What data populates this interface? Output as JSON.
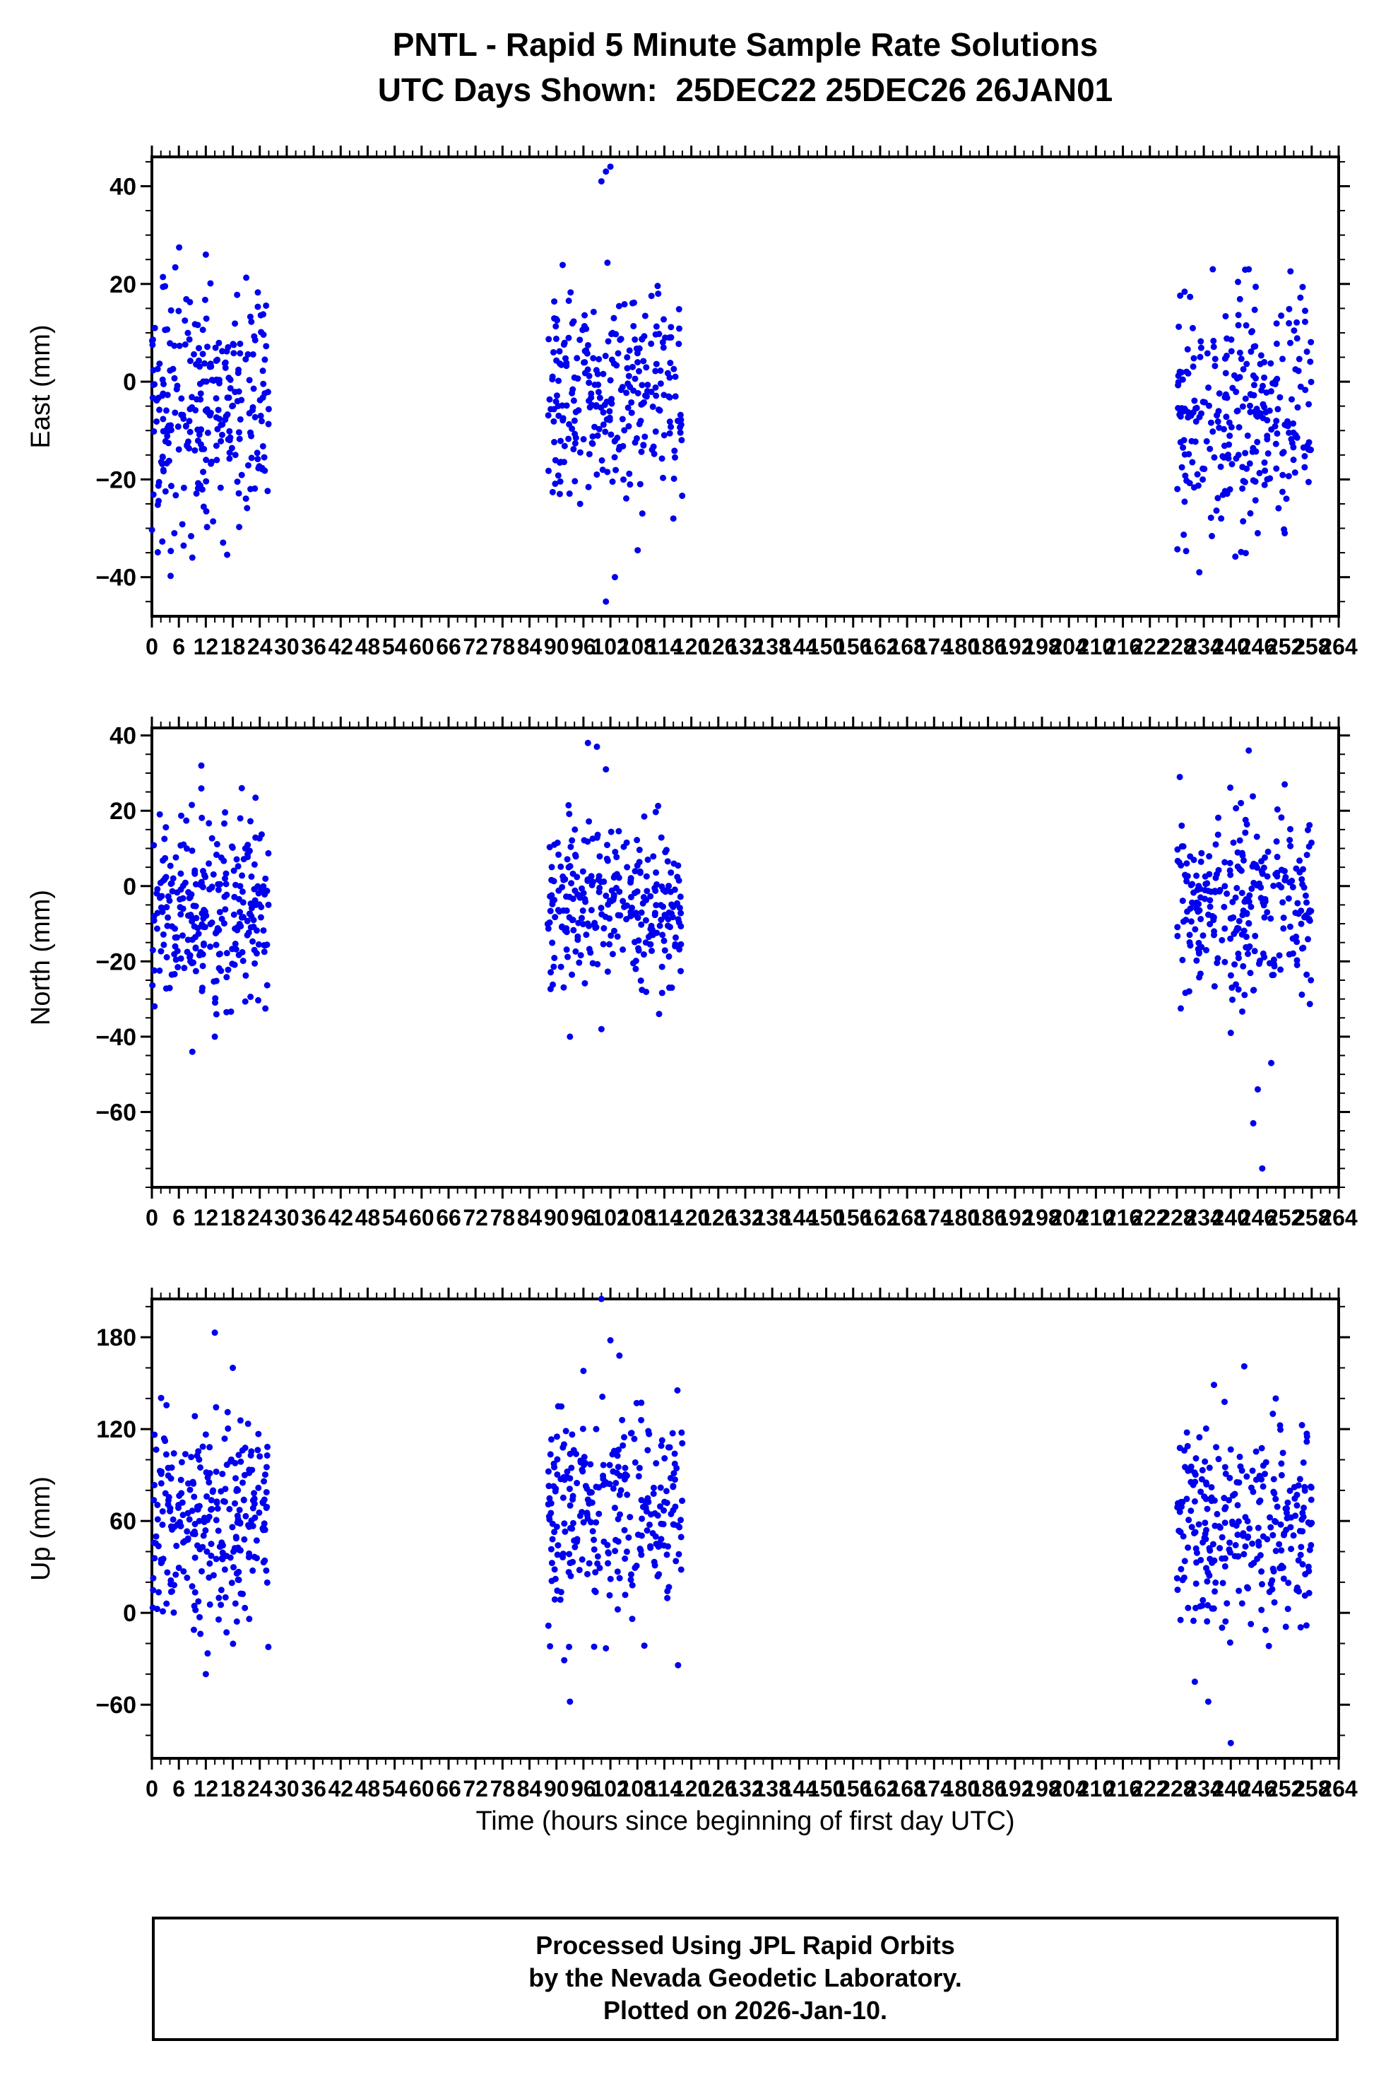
{
  "title": {
    "line1": "PNTL - Rapid 5 Minute Sample Rate Solutions",
    "line2": "UTC Days Shown:  25DEC22 25DEC26 26JAN01"
  },
  "xlabel": "Time (hours since beginning of first day UTC)",
  "footer": {
    "line1": "Processed Using JPL Rapid Orbits",
    "line2": "by the Nevada Geodetic Laboratory.",
    "line3": "Plotted on 2026-Jan-10."
  },
  "style": {
    "point_color": "#0000ee",
    "axis_color": "#000000",
    "background": "#ffffff"
  },
  "chart_data": [
    {
      "type": "scatter",
      "ylabel": "East (mm)",
      "xlim": [
        0,
        264
      ],
      "xticks_step": 6,
      "xticks_minor": 2,
      "ylim": [
        -48,
        46
      ],
      "yticks": [
        -40,
        -20,
        0,
        20,
        40
      ],
      "yticks_minor": 5,
      "seed": 11,
      "clusters": [
        {
          "x_range": [
            0,
            26
          ],
          "y_mean": -5,
          "y_std": 13,
          "n": 270,
          "y_clip": [
            -42,
            28
          ]
        },
        {
          "x_range": [
            88,
            118
          ],
          "y_mean": -2,
          "y_std": 11,
          "n": 270,
          "y_clip": [
            -38,
            26
          ]
        },
        {
          "x_range": [
            228,
            258
          ],
          "y_mean": -6,
          "y_std": 12,
          "n": 270,
          "y_clip": [
            -42,
            24
          ]
        }
      ],
      "outliers": [
        [
          12,
          26
        ],
        [
          5,
          -31
        ],
        [
          9,
          -36
        ],
        [
          101,
          43
        ],
        [
          100,
          41
        ],
        [
          102,
          44
        ],
        [
          101,
          -45
        ],
        [
          103,
          -40
        ],
        [
          116,
          -28
        ],
        [
          233,
          -39
        ],
        [
          246,
          -31
        ],
        [
          252,
          -31
        ],
        [
          236,
          23
        ],
        [
          244,
          23
        ]
      ]
    },
    {
      "type": "scatter",
      "ylabel": "North (mm)",
      "xlim": [
        0,
        264
      ],
      "xticks_step": 6,
      "xticks_minor": 2,
      "ylim": [
        -80,
        42
      ],
      "yticks": [
        -60,
        -40,
        -20,
        0,
        20,
        40
      ],
      "yticks_minor": 5,
      "seed": 22,
      "clusters": [
        {
          "x_range": [
            0,
            26
          ],
          "y_mean": -6,
          "y_std": 12,
          "n": 270,
          "y_clip": [
            -36,
            27
          ]
        },
        {
          "x_range": [
            88,
            118
          ],
          "y_mean": -5,
          "y_std": 11,
          "n": 270,
          "y_clip": [
            -34,
            22
          ]
        },
        {
          "x_range": [
            228,
            258
          ],
          "y_mean": -4,
          "y_std": 13,
          "n": 270,
          "y_clip": [
            -34,
            29
          ]
        }
      ],
      "outliers": [
        [
          11,
          32
        ],
        [
          9,
          -44
        ],
        [
          14,
          -40
        ],
        [
          20,
          26
        ],
        [
          97,
          38
        ],
        [
          99,
          37
        ],
        [
          101,
          31
        ],
        [
          93,
          -40
        ],
        [
          100,
          -38
        ],
        [
          244,
          36
        ],
        [
          252,
          27
        ],
        [
          246,
          -54
        ],
        [
          247,
          -75
        ],
        [
          245,
          -63
        ],
        [
          249,
          -47
        ],
        [
          240,
          -39
        ]
      ]
    },
    {
      "type": "scatter",
      "ylabel": "Up (mm)",
      "xlim": [
        0,
        264
      ],
      "xticks_step": 6,
      "xticks_minor": 2,
      "ylim": [
        -95,
        205
      ],
      "yticks": [
        -60,
        0,
        60,
        120,
        180
      ],
      "yticks_minor": 20,
      "seed": 33,
      "clusters": [
        {
          "x_range": [
            0,
            26
          ],
          "y_mean": 55,
          "y_std": 35,
          "n": 270,
          "y_clip": [
            -30,
            150
          ]
        },
        {
          "x_range": [
            88,
            118
          ],
          "y_mean": 68,
          "y_std": 34,
          "n": 270,
          "y_clip": [
            -35,
            160
          ]
        },
        {
          "x_range": [
            228,
            258
          ],
          "y_mean": 55,
          "y_std": 33,
          "n": 270,
          "y_clip": [
            -40,
            150
          ]
        }
      ],
      "outliers": [
        [
          14,
          183
        ],
        [
          12,
          -40
        ],
        [
          18,
          160
        ],
        [
          100,
          205
        ],
        [
          102,
          178
        ],
        [
          96,
          158
        ],
        [
          104,
          168
        ],
        [
          93,
          -58
        ],
        [
          235,
          -58
        ],
        [
          240,
          -85
        ],
        [
          243,
          161
        ],
        [
          250,
          140
        ],
        [
          232,
          -45
        ]
      ]
    }
  ]
}
